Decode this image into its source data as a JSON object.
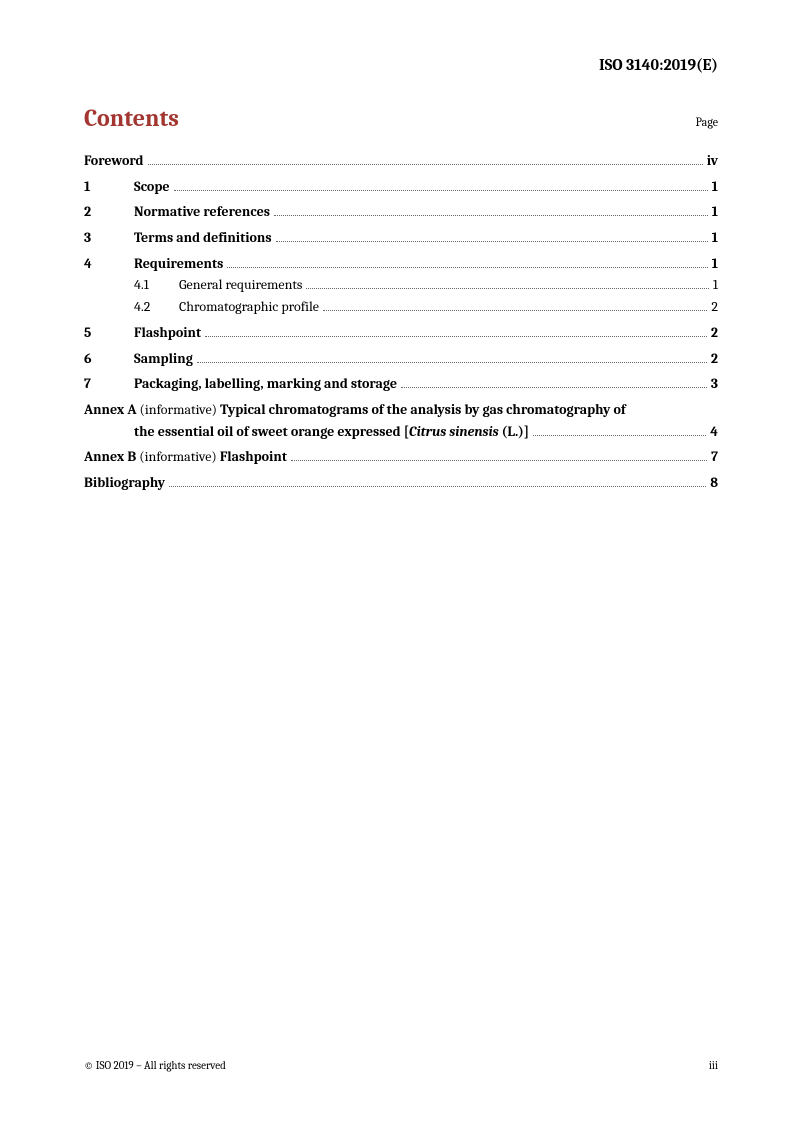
{
  "header": {
    "doc_id": "ISO 3140:2019(E)"
  },
  "contents": {
    "title": "Contents",
    "page_label": "Page"
  },
  "toc": {
    "foreword": {
      "label": "Foreword",
      "page": "iv"
    },
    "sections": [
      {
        "num": "1",
        "label": "Scope",
        "page": "1"
      },
      {
        "num": "2",
        "label": "Normative references",
        "page": "1"
      },
      {
        "num": "3",
        "label": "Terms and definitions",
        "page": "1"
      },
      {
        "num": "4",
        "label": "Requirements",
        "page": "1",
        "subs": [
          {
            "num": "4.1",
            "label": "General requirements",
            "page": "1"
          },
          {
            "num": "4.2",
            "label": "Chromatographic profile",
            "page": "2"
          }
        ]
      },
      {
        "num": "5",
        "label": "Flashpoint",
        "page": "2"
      },
      {
        "num": "6",
        "label": "Sampling",
        "page": "2"
      },
      {
        "num": "7",
        "label": "Packaging, labelling, marking and storage",
        "page": "3"
      }
    ],
    "annexA": {
      "prefix": "Annex A",
      "note": " (informative) ",
      "title_line1": "Typical chromatograms of the analysis by gas chromatography of",
      "title_line2_a": "the essential oil of sweet orange expressed [",
      "title_line2_italic": "Citrus sinensis",
      "title_line2_b": " (L.)]",
      "page": "4"
    },
    "annexB": {
      "prefix": "Annex B",
      "note": " (informative) ",
      "title": "Flashpoint",
      "page": "7"
    },
    "bibliography": {
      "label": "Bibliography",
      "page": "8"
    }
  },
  "footer": {
    "copyright": "© ISO 2019 – All rights reserved",
    "page_number": "iii"
  },
  "style": {
    "accent_color": "#a33631",
    "text_color": "#000000",
    "background": "#ffffff",
    "title_fontsize_pt": 18,
    "body_fontsize_pt": 10.5,
    "footer_fontsize_pt": 8
  }
}
